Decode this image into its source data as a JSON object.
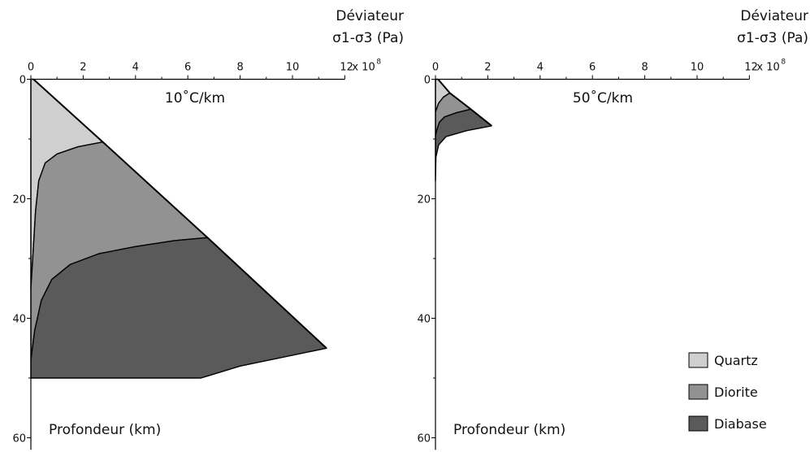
{
  "chart_data": [
    {
      "type": "area",
      "title": "10˚C/km",
      "x_axis_title_line1": "Déviateur",
      "x_axis_title_line2": "σ1-σ3 (Pa)",
      "x_unit_label": "x 10",
      "x_unit_exp": "8",
      "y_axis_title": "Profondeur (km)",
      "xlim": [
        0,
        12
      ],
      "ylim": [
        0,
        62
      ],
      "y_inverted": true,
      "x_ticks": [
        0,
        2,
        4,
        6,
        8,
        10,
        12
      ],
      "x_tick_labels": [
        "0",
        "2",
        "4",
        "6",
        "8",
        "10",
        "12"
      ],
      "y_ticks": [
        0,
        20,
        40,
        60
      ],
      "y_tick_labels": [
        "0",
        "20",
        "40",
        "60"
      ],
      "series": [
        {
          "name": "Quartz",
          "color": "#cfcfcf",
          "outline": [
            [
              0.1,
              0
            ],
            [
              2.75,
              10.5
            ],
            [
              1.8,
              11.3
            ],
            [
              1.0,
              12.5
            ],
            [
              0.55,
              14
            ],
            [
              0.3,
              17
            ],
            [
              0.18,
              22
            ],
            [
              0.1,
              28
            ],
            [
              0,
              35
            ],
            [
              0,
              0
            ]
          ]
        },
        {
          "name": "Diorite",
          "color": "#929292",
          "outline": [
            [
              2.75,
              10.5
            ],
            [
              6.75,
              26.5
            ],
            [
              5.5,
              27
            ],
            [
              4.0,
              28
            ],
            [
              2.6,
              29.2
            ],
            [
              1.5,
              31
            ],
            [
              0.8,
              33.5
            ],
            [
              0.4,
              37
            ],
            [
              0.15,
              42
            ],
            [
              0,
              47
            ],
            [
              0,
              35
            ],
            [
              0.1,
              28
            ],
            [
              0.18,
              22
            ],
            [
              0.3,
              17
            ],
            [
              0.55,
              14
            ],
            [
              1.0,
              12.5
            ],
            [
              1.8,
              11.3
            ]
          ]
        },
        {
          "name": "Diabase",
          "color": "#5a5a5a",
          "outline": [
            [
              6.75,
              26.5
            ],
            [
              11.3,
              45
            ],
            [
              8.0,
              48
            ],
            [
              6.5,
              50
            ],
            [
              0,
              50
            ],
            [
              0,
              47
            ],
            [
              0.15,
              42
            ],
            [
              0.4,
              37
            ],
            [
              0.8,
              33.5
            ],
            [
              1.5,
              31
            ],
            [
              2.6,
              29.2
            ],
            [
              4.0,
              28
            ],
            [
              5.5,
              27
            ]
          ]
        }
      ],
      "brittle_envelope": [
        [
          0.1,
          0
        ],
        [
          2.75,
          10.5
        ],
        [
          6.75,
          26.5
        ],
        [
          11.3,
          45
        ]
      ]
    },
    {
      "type": "area",
      "title": "50˚C/km",
      "x_axis_title_line1": "Déviateur",
      "x_axis_title_line2": "σ1-σ3 (Pa)",
      "x_unit_label": "x 10",
      "x_unit_exp": "8",
      "y_axis_title": "Profondeur (km)",
      "xlim": [
        0,
        12
      ],
      "ylim": [
        0,
        62
      ],
      "y_inverted": true,
      "x_ticks": [
        0,
        2,
        4,
        6,
        8,
        10,
        12
      ],
      "x_tick_labels": [
        "0",
        "2",
        "4",
        "6",
        "8",
        "10",
        "12"
      ],
      "y_ticks": [
        0,
        20,
        40,
        60
      ],
      "y_tick_labels": [
        "0",
        "20",
        "40",
        "60"
      ],
      "series": [
        {
          "name": "Quartz",
          "color": "#cfcfcf",
          "outline": [
            [
              0,
              0
            ],
            [
              0.1,
              0
            ],
            [
              0.55,
              2.3
            ],
            [
              0.3,
              3
            ],
            [
              0.12,
              4
            ],
            [
              0,
              5.5
            ]
          ]
        },
        {
          "name": "Diorite",
          "color": "#929292",
          "outline": [
            [
              0.55,
              2.3
            ],
            [
              1.35,
              5
            ],
            [
              0.8,
              5.6
            ],
            [
              0.35,
              6.3
            ],
            [
              0.15,
              7.2
            ],
            [
              0.05,
              8.5
            ],
            [
              0,
              9.5
            ],
            [
              0,
              5.5
            ],
            [
              0.12,
              4
            ],
            [
              0.3,
              3
            ]
          ]
        },
        {
          "name": "Diabase",
          "color": "#5a5a5a",
          "outline": [
            [
              1.35,
              5
            ],
            [
              2.15,
              7.8
            ],
            [
              1.2,
              8.6
            ],
            [
              0.4,
              9.6
            ],
            [
              0.12,
              11
            ],
            [
              0.02,
              13
            ],
            [
              0,
              17
            ],
            [
              0,
              9.5
            ],
            [
              0.05,
              8.5
            ],
            [
              0.15,
              7.2
            ],
            [
              0.35,
              6.3
            ],
            [
              0.8,
              5.6
            ]
          ]
        }
      ],
      "brittle_envelope": [
        [
          0.1,
          0
        ],
        [
          0.55,
          2.3
        ],
        [
          1.35,
          5
        ],
        [
          2.15,
          7.8
        ]
      ]
    }
  ],
  "legend": {
    "placement": "bottom-right",
    "items": [
      {
        "label": "Quartz",
        "color": "#cfcfcf"
      },
      {
        "label": "Diorite",
        "color": "#929292"
      },
      {
        "label": "Diabase",
        "color": "#5a5a5a"
      }
    ]
  }
}
